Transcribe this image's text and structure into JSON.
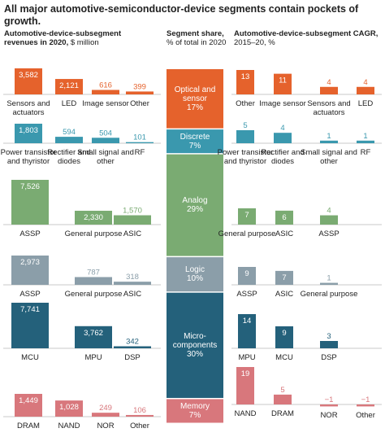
{
  "title": "All major automotive-semiconductor-device segments contain pockets of growth.",
  "left_header": {
    "bold": "Automotive-device-subsegment revenues in 2020,",
    "unit": "$ million"
  },
  "middle_header": {
    "bold": "Segment share,",
    "unit": "% of total in 2020"
  },
  "right_header": {
    "bold": "Automotive-device-subsegment CAGR,",
    "unit": "2015–20, %"
  },
  "segments": [
    {
      "name": "Optical and sensor",
      "share": 17,
      "share_label": "17%",
      "color": "#e5622c",
      "revenue": {
        "categories": [
          "Sensors and actuators",
          "LED",
          "Image sensor",
          "Other"
        ],
        "values": [
          3582,
          2121,
          616,
          399
        ],
        "value_labels": [
          "3,582",
          "2,121",
          "616",
          "399"
        ]
      },
      "cagr": {
        "categories": [
          "Other",
          "Image sensor",
          "Sensors and actuators",
          "LED"
        ],
        "values": [
          13,
          11,
          4,
          4
        ]
      }
    },
    {
      "name": "Discrete",
      "share": 7,
      "share_label": "7%",
      "color": "#3a98ae",
      "revenue": {
        "categories": [
          "Power transistor and thyristor",
          "Rectifier and diodes",
          "Small signal and other",
          "RF"
        ],
        "values": [
          1803,
          594,
          504,
          101
        ],
        "value_labels": [
          "1,803",
          "594",
          "504",
          "101"
        ]
      },
      "cagr": {
        "categories": [
          "Power transistor and thyristor",
          "Rectifier and diodes",
          "Small signal and other",
          "RF"
        ],
        "values": [
          5,
          4,
          1,
          1
        ]
      }
    },
    {
      "name": "Analog",
      "share": 29,
      "share_label": "29%",
      "color": "#7aab72",
      "revenue": {
        "categories": [
          "ASSP",
          "General purpose",
          "ASIC"
        ],
        "values": [
          7526,
          2330,
          1570
        ],
        "value_labels": [
          "7,526",
          "2,330",
          "1,570"
        ]
      },
      "cagr": {
        "categories": [
          "General purpose",
          "ASIC",
          "ASSP"
        ],
        "values": [
          7,
          6,
          4
        ]
      }
    },
    {
      "name": "Logic",
      "share": 10,
      "share_label": "10%",
      "color": "#8b9ea9",
      "revenue": {
        "categories": [
          "ASSP",
          "General purpose",
          "ASIC"
        ],
        "values": [
          2973,
          787,
          318
        ],
        "value_labels": [
          "2,973",
          "787",
          "318"
        ]
      },
      "cagr": {
        "categories": [
          "ASSP",
          "ASIC",
          "General purpose"
        ],
        "values": [
          9,
          7,
          1
        ]
      }
    },
    {
      "name": "Micro-components",
      "share": 30,
      "share_label": "30%",
      "color": "#24617b",
      "revenue": {
        "categories": [
          "MCU",
          "MPU",
          "DSP"
        ],
        "values": [
          7741,
          3762,
          342
        ],
        "value_labels": [
          "7,741",
          "3,762",
          "342"
        ]
      },
      "cagr": {
        "categories": [
          "MPU",
          "MCU",
          "DSP"
        ],
        "values": [
          14,
          9,
          3
        ]
      }
    },
    {
      "name": "Memory",
      "share": 7,
      "share_label": "7%",
      "color": "#d8777c",
      "revenue": {
        "categories": [
          "DRAM",
          "NAND",
          "NOR",
          "Other"
        ],
        "values": [
          1449,
          1028,
          249,
          106
        ],
        "value_labels": [
          "1,449",
          "1,028",
          "249",
          "106"
        ]
      },
      "cagr": {
        "categories": [
          "NAND",
          "DRAM",
          "NOR",
          "Other"
        ],
        "values": [
          19,
          5,
          -1,
          -1
        ],
        "value_labels": [
          "19",
          "5",
          "−1",
          "−1"
        ]
      }
    }
  ]
}
